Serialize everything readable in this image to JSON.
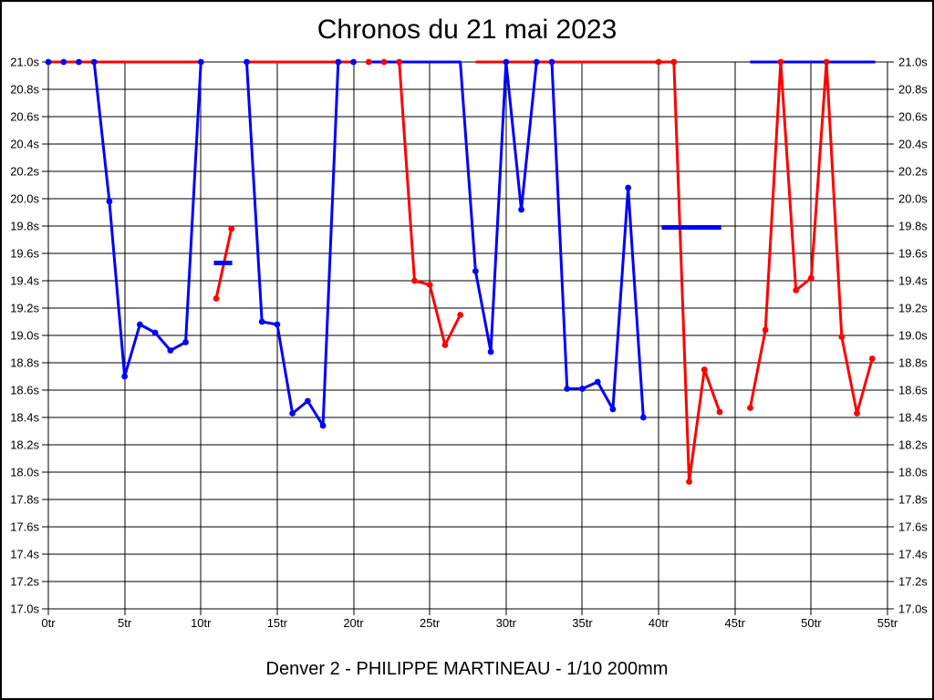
{
  "page": {
    "title": "Chronos du 21 mai 2023",
    "caption": "Denver 2 - PHILIPPE MARTINEAU - 1/10 200mm"
  },
  "chart_data": {
    "type": "line",
    "title": "Chronos du 21 mai 2023",
    "caption": "Denver 2 - PHILIPPE MARTINEAU - 1/10 200mm",
    "x_unit": "tr",
    "y_unit": "s",
    "xlim": [
      0,
      55
    ],
    "ylim": [
      17.0,
      21.0
    ],
    "grid": true,
    "values_capped_at": 21.0,
    "x_ticks": [
      {
        "value": 0,
        "label": "0tr"
      },
      {
        "value": 5,
        "label": "5tr"
      },
      {
        "value": 10,
        "label": "10tr"
      },
      {
        "value": 15,
        "label": "15tr"
      },
      {
        "value": 20,
        "label": "20tr"
      },
      {
        "value": 25,
        "label": "25tr"
      },
      {
        "value": 30,
        "label": "30tr"
      },
      {
        "value": 35,
        "label": "35tr"
      },
      {
        "value": 40,
        "label": "40tr"
      },
      {
        "value": 45,
        "label": "45tr"
      },
      {
        "value": 50,
        "label": "50tr"
      },
      {
        "value": 55,
        "label": "55tr"
      }
    ],
    "y_ticks": [
      {
        "value": 21.0,
        "label": "21.0s"
      },
      {
        "value": 20.8,
        "label": "20.8s"
      },
      {
        "value": 20.6,
        "label": "20.6s"
      },
      {
        "value": 20.4,
        "label": "20.4s"
      },
      {
        "value": 20.2,
        "label": "20.2s"
      },
      {
        "value": 20.0,
        "label": "20.0s"
      },
      {
        "value": 19.8,
        "label": "19.8s"
      },
      {
        "value": 19.6,
        "label": "19.6s"
      },
      {
        "value": 19.4,
        "label": "19.4s"
      },
      {
        "value": 19.2,
        "label": "19.2s"
      },
      {
        "value": 19.0,
        "label": "19.0s"
      },
      {
        "value": 18.8,
        "label": "18.8s"
      },
      {
        "value": 18.6,
        "label": "18.6s"
      },
      {
        "value": 18.4,
        "label": "18.4s"
      },
      {
        "value": 18.2,
        "label": "18.2s"
      },
      {
        "value": 18.0,
        "label": "18.0s"
      },
      {
        "value": 17.8,
        "label": "17.8s"
      },
      {
        "value": 17.6,
        "label": "17.6s"
      },
      {
        "value": 17.4,
        "label": "17.4s"
      },
      {
        "value": 17.2,
        "label": "17.2s"
      },
      {
        "value": 17.0,
        "label": "17.0s"
      }
    ],
    "series": [
      {
        "name": "blue-rider",
        "color": "#0000ff",
        "segments": [
          [
            [
              0,
              21
            ],
            [
              1,
              21
            ],
            [
              2,
              21
            ],
            [
              3,
              21
            ],
            [
              4,
              19.98
            ],
            [
              5,
              18.7
            ],
            [
              6,
              19.08
            ],
            [
              7,
              19.02
            ],
            [
              8,
              18.89
            ],
            [
              9,
              18.95
            ],
            [
              10,
              21
            ]
          ],
          [
            [
              13,
              21
            ],
            [
              14,
              19.1
            ],
            [
              15,
              19.08
            ],
            [
              16,
              18.43
            ],
            [
              17,
              18.52
            ],
            [
              18,
              18.34
            ],
            [
              19,
              21
            ],
            [
              20,
              21
            ]
          ],
          [
            [
              21,
              21
            ],
            [
              27,
              21
            ],
            [
              28,
              19.47
            ],
            [
              29,
              18.88
            ],
            [
              30,
              21
            ],
            [
              31,
              19.92
            ],
            [
              32,
              21
            ],
            [
              33,
              21
            ],
            [
              34,
              18.61
            ],
            [
              35,
              18.61
            ],
            [
              36,
              18.66
            ],
            [
              37,
              18.46
            ],
            [
              38,
              20.08
            ],
            [
              39,
              18.4
            ]
          ],
          [
            [
              46,
              21
            ],
            [
              54.2,
              21
            ]
          ]
        ],
        "markers": [
          [
            0,
            21
          ],
          [
            1,
            21
          ],
          [
            2,
            21
          ],
          [
            3,
            21
          ],
          [
            4,
            19.98
          ],
          [
            5,
            18.7
          ],
          [
            6,
            19.08
          ],
          [
            7,
            19.02
          ],
          [
            8,
            18.89
          ],
          [
            9,
            18.95
          ],
          [
            10,
            21
          ],
          [
            13,
            21
          ],
          [
            14,
            19.1
          ],
          [
            15,
            19.08
          ],
          [
            16,
            18.43
          ],
          [
            17,
            18.52
          ],
          [
            18,
            18.34
          ],
          [
            19,
            21
          ],
          [
            20,
            21
          ],
          [
            28,
            19.47
          ],
          [
            29,
            18.88
          ],
          [
            30,
            21
          ],
          [
            31,
            19.92
          ],
          [
            32,
            21
          ],
          [
            33,
            21
          ],
          [
            34,
            18.61
          ],
          [
            35,
            18.61
          ],
          [
            36,
            18.66
          ],
          [
            37,
            18.46
          ],
          [
            38,
            20.08
          ],
          [
            39,
            18.4
          ]
        ],
        "gap_bars": [
          {
            "x1": 10.85,
            "x2": 12.05,
            "y": 19.53
          },
          {
            "x1": 40.2,
            "x2": 44.1,
            "y": 19.79
          }
        ]
      },
      {
        "name": "red-rider",
        "color": "#ff0000",
        "segments": [
          [
            [
              0,
              21
            ],
            [
              10,
              21
            ]
          ],
          [
            [
              11,
              19.27
            ],
            [
              12,
              19.78
            ]
          ],
          [
            [
              13,
              21
            ],
            [
              20,
              21
            ]
          ],
          [
            [
              23,
              21
            ],
            [
              24,
              19.4
            ],
            [
              25,
              19.37
            ],
            [
              26,
              18.93
            ],
            [
              27,
              19.15
            ]
          ],
          [
            [
              28,
              21
            ],
            [
              41,
              21
            ],
            [
              42,
              17.93
            ],
            [
              43,
              18.75
            ],
            [
              44,
              18.44
            ]
          ],
          [
            [
              46,
              18.47
            ],
            [
              47,
              19.04
            ],
            [
              48,
              21
            ],
            [
              49,
              19.33
            ],
            [
              50,
              19.42
            ],
            [
              51,
              21
            ],
            [
              52,
              18.99
            ],
            [
              53,
              18.43
            ],
            [
              54,
              18.83
            ]
          ]
        ],
        "markers": [
          [
            11,
            19.27
          ],
          [
            12,
            19.78
          ],
          [
            21,
            21
          ],
          [
            22,
            21
          ],
          [
            23,
            21
          ],
          [
            24,
            19.4
          ],
          [
            25,
            19.37
          ],
          [
            26,
            18.93
          ],
          [
            27,
            19.15
          ],
          [
            40,
            21
          ],
          [
            41,
            21
          ],
          [
            42,
            17.93
          ],
          [
            43,
            18.75
          ],
          [
            44,
            18.44
          ],
          [
            46,
            18.47
          ],
          [
            47,
            19.04
          ],
          [
            48,
            21
          ],
          [
            49,
            19.33
          ],
          [
            50,
            19.42
          ],
          [
            51,
            21
          ],
          [
            52,
            18.99
          ],
          [
            53,
            18.43
          ],
          [
            54,
            18.83
          ]
        ],
        "gap_bars": []
      }
    ]
  }
}
